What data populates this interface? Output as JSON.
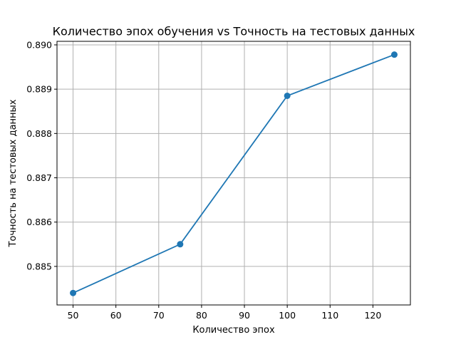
{
  "chart_data": {
    "type": "line",
    "title": "Количество эпох обучения vs Точность на тестовых данных",
    "xlabel": "Количество эпох",
    "ylabel": "Точность на тестовых данных",
    "x": [
      50,
      75,
      100,
      125
    ],
    "series": [
      {
        "values": [
          0.8844,
          0.8855,
          0.88885,
          0.88978
        ],
        "color": "#1f77b4",
        "marker": "circle"
      }
    ],
    "xlim": [
      46.25,
      128.75
    ],
    "ylim": [
      0.88413,
      0.89008
    ],
    "xticks": [
      50,
      60,
      70,
      80,
      90,
      100,
      110,
      120
    ],
    "xtick_labels": [
      "50",
      "60",
      "70",
      "80",
      "90",
      "100",
      "110",
      "120"
    ],
    "yticks": [
      0.885,
      0.886,
      0.887,
      0.888,
      0.889,
      0.89
    ],
    "ytick_labels": [
      "0.885",
      "0.886",
      "0.887",
      "0.888",
      "0.889",
      "0.890"
    ],
    "grid": true
  }
}
